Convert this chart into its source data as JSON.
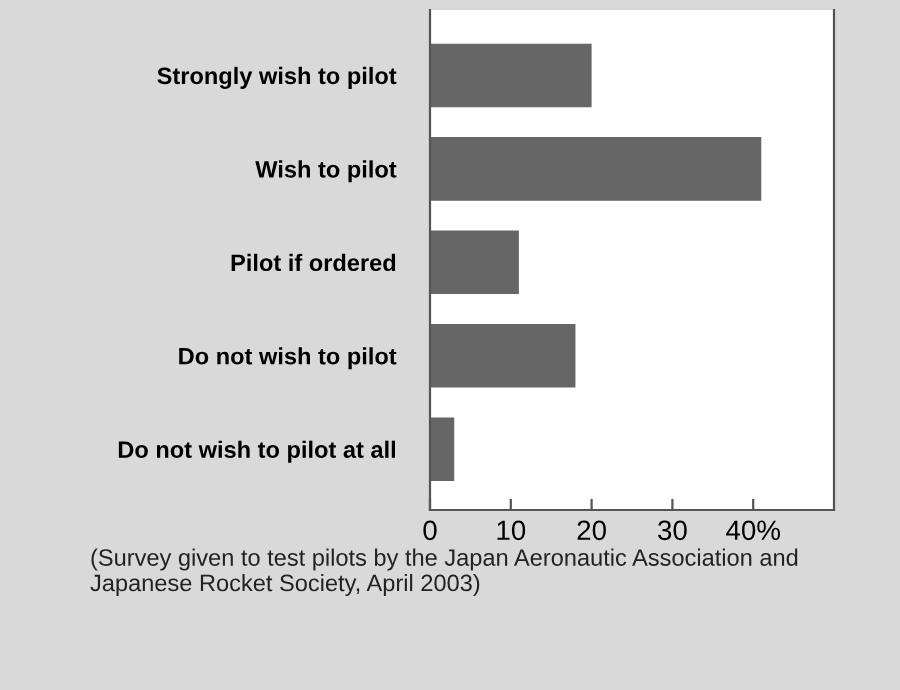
{
  "chart_data": {
    "type": "bar",
    "orientation": "horizontal",
    "categories": [
      "Strongly wish to pilot",
      "Wish to pilot",
      "Pilot if ordered",
      "Do not wish to pilot",
      "Do not wish to pilot at all"
    ],
    "values": [
      20,
      41,
      11,
      18,
      3
    ],
    "color": "#666666",
    "xlim": [
      0,
      50
    ],
    "xticks": [
      0,
      10,
      20,
      30,
      {
        "value": 40,
        "label": "40%"
      }
    ],
    "grid": false,
    "annotations": [
      "(Survey given to test pilots by the Japan Aeronautic Association and Japanese Rocket Society, April 2003)"
    ]
  }
}
